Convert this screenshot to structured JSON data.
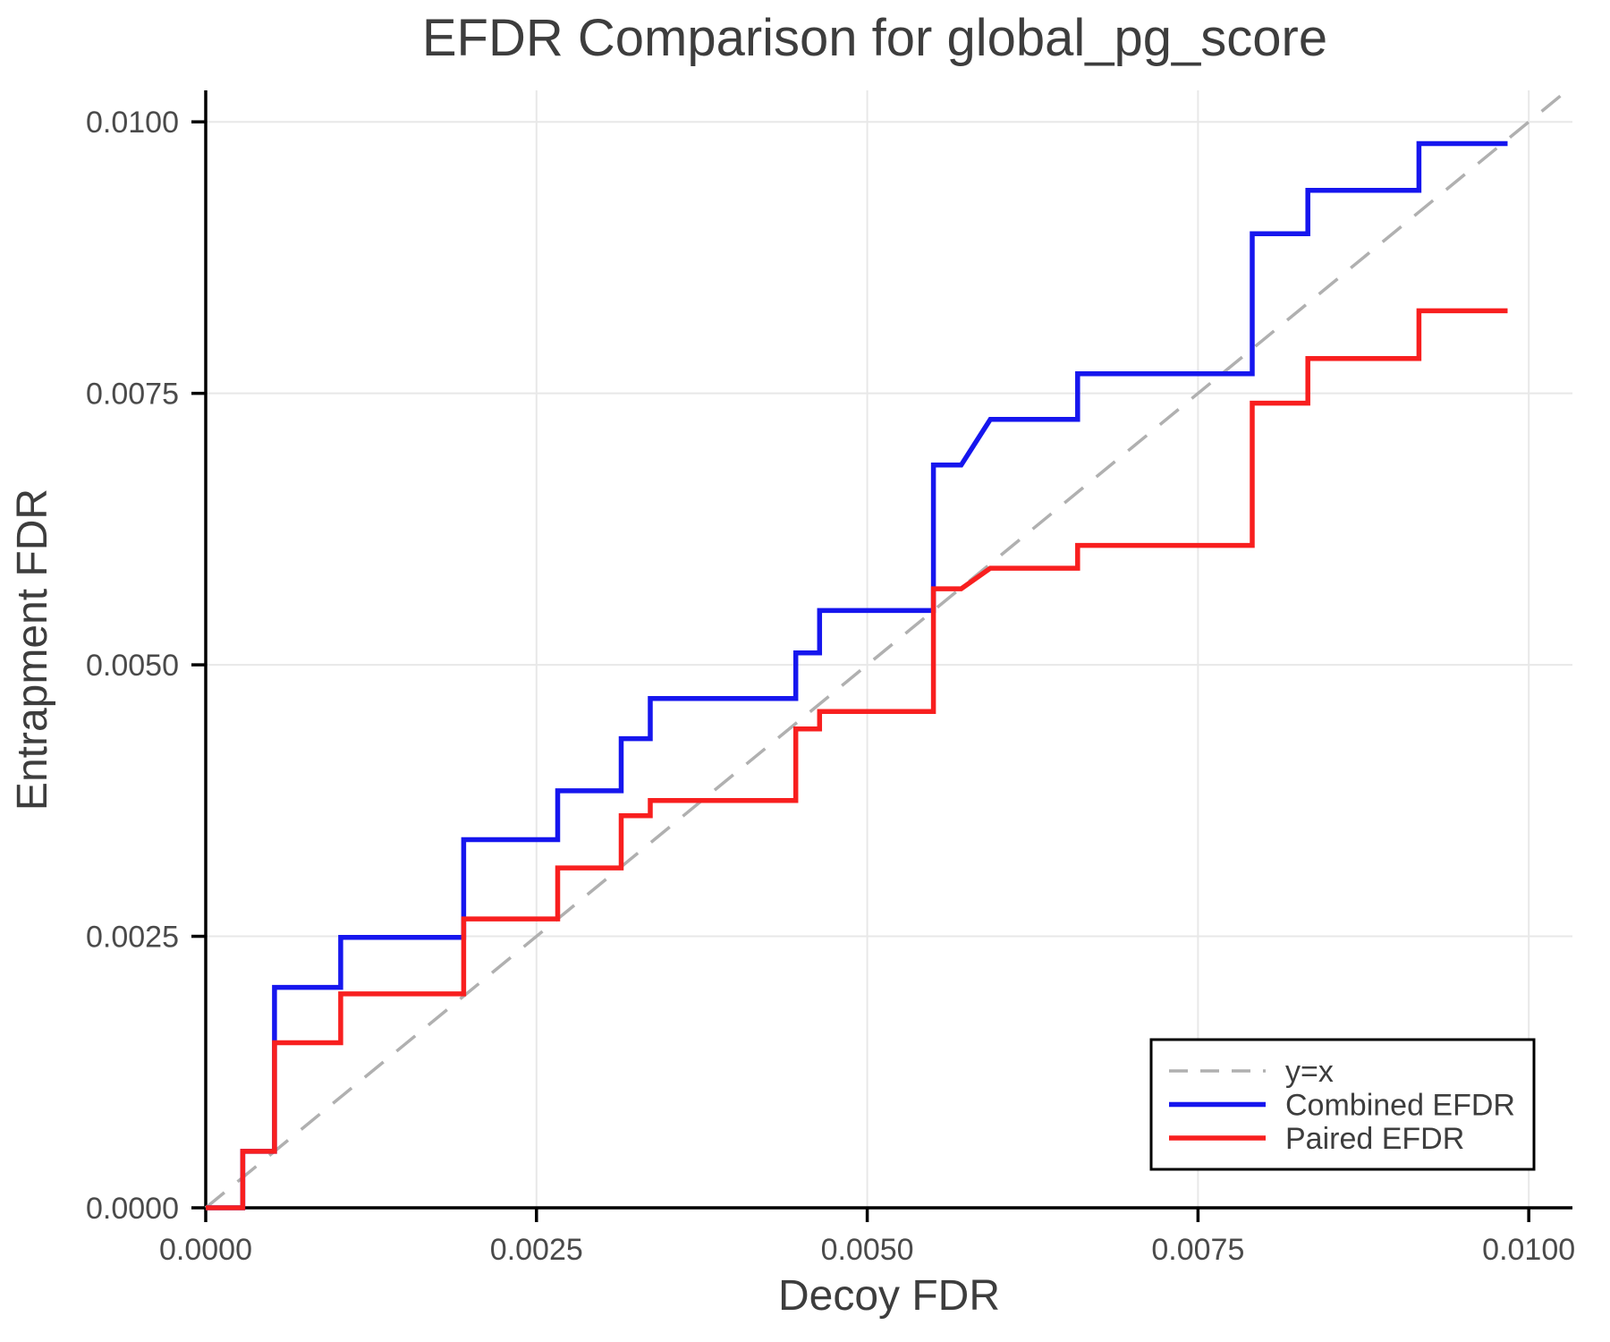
{
  "chart_data": {
    "type": "line",
    "title": "EFDR Comparison for global_pg_score",
    "xlabel": "Decoy FDR",
    "ylabel": "Entrapment FDR",
    "xlim": [
      0,
      0.01033
    ],
    "ylim": [
      0,
      0.01029
    ],
    "grid": true,
    "xticks": {
      "values": [
        0,
        0.0025,
        0.005,
        0.0075,
        0.01
      ],
      "labels": [
        "0.0000",
        "0.0025",
        "0.0050",
        "0.0075",
        "0.0100"
      ]
    },
    "yticks": {
      "values": [
        0,
        0.0025,
        0.005,
        0.0075,
        0.01
      ],
      "labels": [
        "0.0000",
        "0.0025",
        "0.0050",
        "0.0075",
        "0.0100"
      ]
    },
    "colors": {
      "combined": "#1616ee",
      "paired": "#f81f1f",
      "reference": "#b0b0b0",
      "grid": "#e8e8e8",
      "spine": "#000000",
      "title_text": "#3d3d3d",
      "tick_text": "#4a4a4a"
    },
    "legend": {
      "position": "lower right",
      "entries": [
        {
          "label": "y=x",
          "color": "#b0b0b0",
          "dashed": true
        },
        {
          "label": "Combined EFDR",
          "color": "#1616ee",
          "dashed": false
        },
        {
          "label": "Paired EFDR",
          "color": "#f81f1f",
          "dashed": false
        }
      ]
    },
    "series": [
      {
        "name": "y=x",
        "role": "reference-line",
        "color": "#b0b0b0",
        "dashed": true,
        "points": [
          [
            0,
            0
          ],
          [
            0.0103,
            0.0103
          ]
        ]
      },
      {
        "name": "Combined EFDR",
        "role": "data-series",
        "color": "#1616ee",
        "dashed": false,
        "points": [
          [
            0.0,
            0.0
          ],
          [
            0.00028,
            0.0
          ],
          [
            0.00028,
            0.00052
          ],
          [
            0.00052,
            0.00052
          ],
          [
            0.00052,
            0.00203
          ],
          [
            0.00102,
            0.00203
          ],
          [
            0.00102,
            0.00249
          ],
          [
            0.00195,
            0.00249
          ],
          [
            0.00195,
            0.00339
          ],
          [
            0.00266,
            0.00339
          ],
          [
            0.00266,
            0.00384
          ],
          [
            0.00314,
            0.00384
          ],
          [
            0.00314,
            0.00432
          ],
          [
            0.00336,
            0.00432
          ],
          [
            0.00336,
            0.00469
          ],
          [
            0.00446,
            0.00469
          ],
          [
            0.00446,
            0.00511
          ],
          [
            0.00464,
            0.00511
          ],
          [
            0.00464,
            0.0055
          ],
          [
            0.0055,
            0.0055
          ],
          [
            0.0055,
            0.00684
          ],
          [
            0.00571,
            0.00684
          ],
          [
            0.00593,
            0.00726
          ],
          [
            0.00659,
            0.00726
          ],
          [
            0.00659,
            0.00768
          ],
          [
            0.00791,
            0.00768
          ],
          [
            0.00791,
            0.00897
          ],
          [
            0.00833,
            0.00897
          ],
          [
            0.00833,
            0.00937
          ],
          [
            0.00917,
            0.00937
          ],
          [
            0.00917,
            0.0098
          ],
          [
            0.00984,
            0.0098
          ]
        ]
      },
      {
        "name": "Paired EFDR",
        "role": "data-series",
        "color": "#f81f1f",
        "dashed": false,
        "points": [
          [
            0.0,
            0.0
          ],
          [
            0.00028,
            0.0
          ],
          [
            0.00028,
            0.00052
          ],
          [
            0.00052,
            0.00052
          ],
          [
            0.00052,
            0.00152
          ],
          [
            0.00102,
            0.00152
          ],
          [
            0.00102,
            0.00197
          ],
          [
            0.00195,
            0.00197
          ],
          [
            0.00195,
            0.00266
          ],
          [
            0.00266,
            0.00266
          ],
          [
            0.00266,
            0.00313
          ],
          [
            0.00314,
            0.00313
          ],
          [
            0.00314,
            0.00361
          ],
          [
            0.00336,
            0.00361
          ],
          [
            0.00336,
            0.00375
          ],
          [
            0.00446,
            0.00375
          ],
          [
            0.00446,
            0.00441
          ],
          [
            0.00464,
            0.00441
          ],
          [
            0.00464,
            0.00457
          ],
          [
            0.0055,
            0.00457
          ],
          [
            0.0055,
            0.0057
          ],
          [
            0.00571,
            0.0057
          ],
          [
            0.00593,
            0.00589
          ],
          [
            0.00659,
            0.00589
          ],
          [
            0.00659,
            0.0061
          ],
          [
            0.00791,
            0.0061
          ],
          [
            0.00791,
            0.00741
          ],
          [
            0.00833,
            0.00741
          ],
          [
            0.00833,
            0.00782
          ],
          [
            0.00917,
            0.00782
          ],
          [
            0.00917,
            0.00826
          ],
          [
            0.00984,
            0.00826
          ]
        ]
      }
    ]
  }
}
